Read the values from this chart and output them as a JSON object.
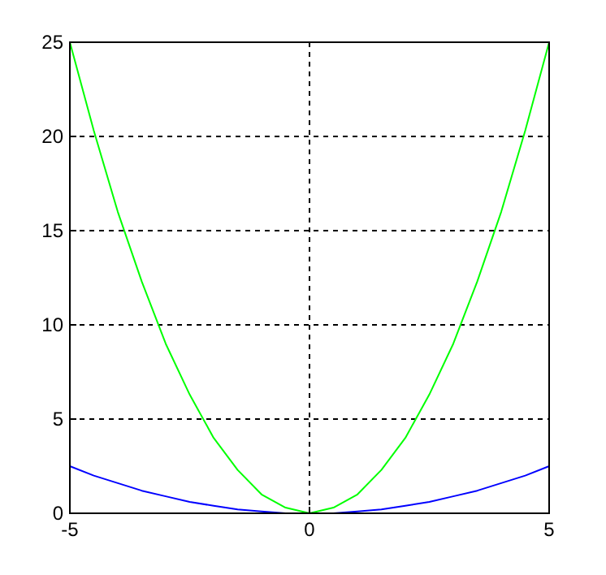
{
  "chart_data": {
    "type": "line",
    "x": [
      -5,
      -4.5,
      -4,
      -3.5,
      -3,
      -2.5,
      -2,
      -1.5,
      -1,
      -0.5,
      0,
      0.5,
      1,
      1.5,
      2,
      2.5,
      3,
      3.5,
      4,
      4.5,
      5
    ],
    "series": [
      {
        "color": "#0000ff",
        "values": [
          2.5,
          2,
          1.6,
          1.2,
          0.9,
          0.6,
          0.4,
          0.2,
          0.1,
          0,
          0,
          0,
          0.1,
          0.2,
          0.4,
          0.6,
          0.9,
          1.2,
          1.6,
          2,
          2.5
        ]
      },
      {
        "color": "#00ff00",
        "values": [
          25,
          20.3,
          16,
          12.3,
          9,
          6.3,
          4,
          2.3,
          1,
          0.3,
          0,
          0.3,
          1,
          2.3,
          4,
          6.3,
          9,
          12.3,
          16,
          20.3,
          25
        ]
      }
    ],
    "xlim": [
      -5,
      5
    ],
    "xticks": [
      -5,
      0,
      5
    ],
    "ylim": [
      0,
      25
    ],
    "yticks": [
      0,
      5,
      10,
      15,
      20,
      25
    ],
    "grid": true,
    "marker": "none",
    "line_style": "solid"
  }
}
